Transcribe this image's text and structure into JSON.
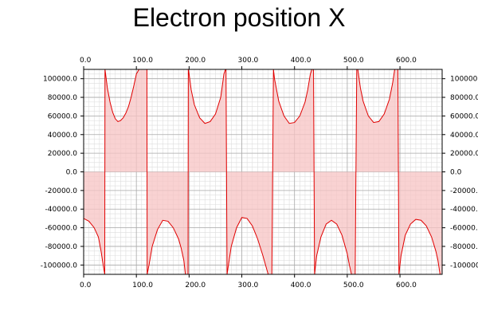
{
  "chart_data": {
    "type": "area",
    "title": "Electron position X",
    "xlabel": "",
    "ylabel": "",
    "xlim": [
      0,
      680
    ],
    "ylim": [
      -110000,
      110000
    ],
    "x_ticks": [
      0,
      100,
      200,
      300,
      400,
      500,
      600
    ],
    "x_tick_labels": [
      "0.0",
      "100.0",
      "200.0",
      "300.0",
      "400.0",
      "500.0",
      "600.0"
    ],
    "y_ticks": [
      100000,
      80000,
      60000,
      40000,
      20000,
      0,
      -20000,
      -40000,
      -60000,
      -80000,
      -100000
    ],
    "y_tick_labels": [
      "100000.0",
      "80000.0",
      "60000.0",
      "40000.0",
      "20000.0",
      "0.0",
      "-20000.0",
      "-40000.0",
      "-60000.0",
      "-80000.0",
      "-100000.0"
    ],
    "x_minor_step": 10,
    "y_minor_step": 5000,
    "grid": true,
    "colors": {
      "line": "#e00000",
      "fill": "#f7c3c3",
      "grid_minor": "#dddddd",
      "grid_major": "#aaaaaa"
    },
    "series": [
      {
        "x": [
          0,
          10,
          20,
          28,
          33,
          37,
          40,
          40.5,
          45,
          50,
          55,
          60,
          65,
          70,
          75,
          80,
          85,
          90,
          95,
          100,
          105,
          110,
          114,
          115,
          119,
          120,
          120.5,
          124,
          130,
          140,
          150,
          160,
          170,
          180,
          185,
          190,
          193,
          196,
          198,
          198.5,
          200,
          204,
          210,
          220,
          230,
          240,
          250,
          260,
          262,
          266,
          269,
          270,
          272,
          276,
          280,
          290,
          300,
          310,
          320,
          330,
          340,
          350,
          354,
          357,
          360,
          362,
          370,
          380,
          390,
          400,
          410,
          420,
          425,
          430,
          433,
          436,
          438,
          442,
          450,
          460,
          470,
          480,
          490,
          500,
          504,
          508,
          512,
          515,
          518,
          520,
          525,
          530,
          540,
          550,
          560,
          570,
          580,
          586,
          590,
          593,
          596,
          598,
          602,
          610,
          620,
          630,
          640,
          650,
          660,
          668,
          672,
          676,
          680
        ],
        "y": [
          -50000,
          -53000,
          -60000,
          -70000,
          -85000,
          -100000,
          -110000,
          110000,
          90000,
          75000,
          64000,
          57000,
          54000,
          55000,
          58000,
          63000,
          70000,
          80000,
          92000,
          105000,
          110000,
          110000,
          110000,
          110000,
          110000,
          110000,
          -110000,
          -100000,
          -80000,
          -62000,
          -52000,
          -53000,
          -60000,
          -72000,
          -82000,
          -95000,
          -110000,
          -110000,
          -110000,
          110000,
          105000,
          88000,
          72000,
          58000,
          52000,
          54000,
          62000,
          80000,
          88000,
          105000,
          110000,
          110000,
          -110000,
          -95000,
          -80000,
          -60000,
          -49000,
          -50000,
          -58000,
          -72000,
          -90000,
          -110000,
          -110000,
          -110000,
          110000,
          100000,
          76000,
          60000,
          52000,
          53000,
          60000,
          75000,
          88000,
          105000,
          110000,
          110000,
          -110000,
          -90000,
          -70000,
          -56000,
          -52000,
          -56000,
          -68000,
          -88000,
          -100000,
          -110000,
          -110000,
          -110000,
          110000,
          110000,
          90000,
          76000,
          60000,
          53000,
          54000,
          62000,
          78000,
          95000,
          110000,
          110000,
          110000,
          -110000,
          -90000,
          -68000,
          -56000,
          -51000,
          -52000,
          -58000,
          -70000,
          -85000,
          -95000,
          -110000,
          -110000
        ]
      }
    ]
  }
}
